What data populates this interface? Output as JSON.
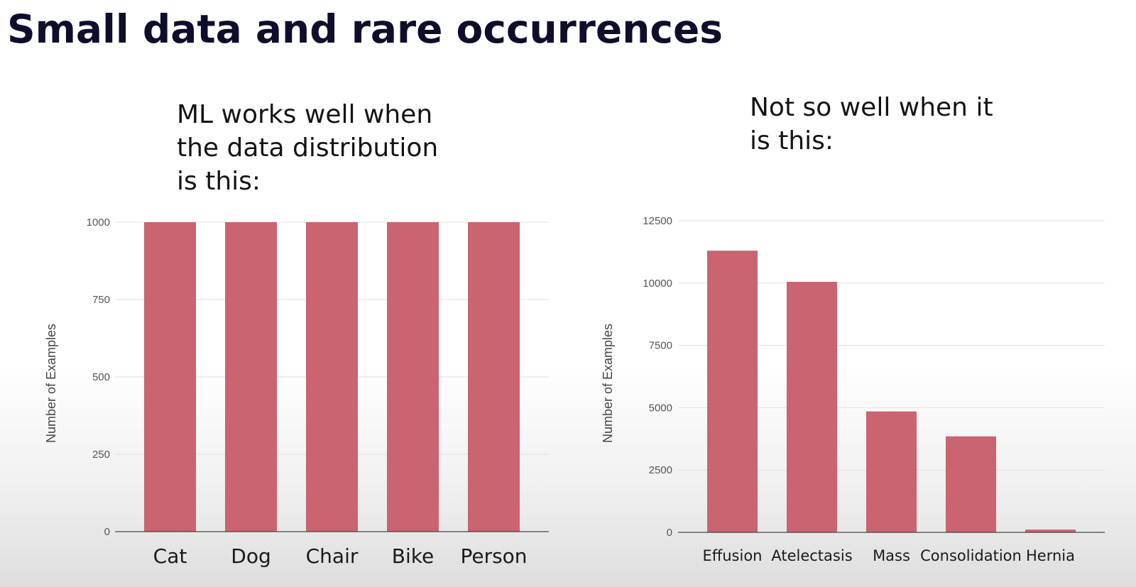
{
  "slide": {
    "title": "Small data and rare occurrences",
    "left_caption": [
      "ML works well when",
      "the data distribution",
      "is this:"
    ],
    "right_caption": [
      "Not so well when it",
      "is this:"
    ]
  },
  "colors": {
    "bar": "#c96470",
    "title": "#0e0e2c"
  },
  "chart_data": [
    {
      "type": "bar",
      "title": "",
      "xlabel": "",
      "ylabel": "Number of Examples",
      "categories": [
        "Cat",
        "Dog",
        "Chair",
        "Bike",
        "Person"
      ],
      "values": [
        1000,
        1000,
        1000,
        1000,
        1000
      ],
      "ylim": [
        0,
        1000
      ],
      "yticks": [
        "0",
        "250",
        "500",
        "750",
        "1000"
      ],
      "grid": true,
      "legend": "none"
    },
    {
      "type": "bar",
      "title": "",
      "xlabel": "",
      "ylabel": "Number of Examples",
      "categories": [
        "Effusion",
        "Atelectasis",
        "Mass",
        "Consolidation",
        "Hernia"
      ],
      "values": [
        11300,
        10050,
        4850,
        3850,
        110
      ],
      "ylim": [
        0,
        12500
      ],
      "yticks": [
        "0",
        "2500",
        "5000",
        "7500",
        "10000",
        "12500"
      ],
      "grid": true,
      "legend": "none"
    }
  ]
}
